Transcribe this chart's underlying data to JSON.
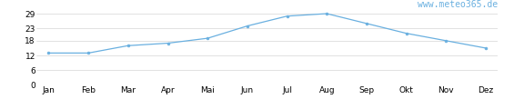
{
  "months": [
    "Jan",
    "Feb",
    "Mar",
    "Apr",
    "Mai",
    "Jun",
    "Jul",
    "Aug",
    "Sep",
    "Okt",
    "Nov",
    "Dez"
  ],
  "values": [
    13,
    13,
    16,
    17,
    19,
    24,
    28,
    29,
    25,
    21,
    18,
    15
  ],
  "line_color": "#6ab0e0",
  "marker_color": "#6ab0e0",
  "ylim": [
    0,
    31
  ],
  "yticks": [
    0,
    6,
    12,
    18,
    23,
    29
  ],
  "ytick_labels": [
    "0",
    "6",
    "12",
    "18",
    "23",
    "29"
  ],
  "background_color": "#ffffff",
  "watermark": "www.meteo365.de",
  "watermark_color": "#6ab0e0",
  "watermark_fontsize": 7,
  "tick_fontsize": 6.5,
  "grid_color": "#cccccc",
  "grid_linewidth": 0.4
}
